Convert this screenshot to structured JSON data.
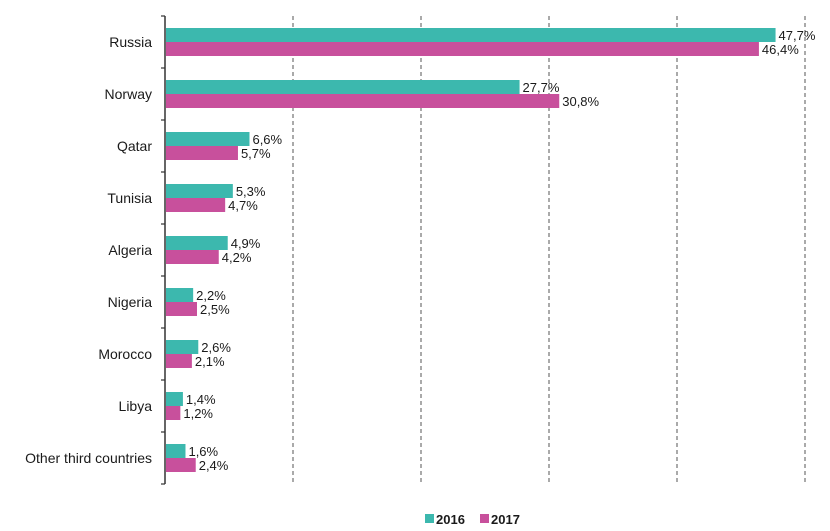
{
  "chart_data": {
    "type": "bar",
    "orientation": "horizontal",
    "categories": [
      "Russia",
      "Norway",
      "Qatar",
      "Tunisia",
      "Algeria",
      "Nigeria",
      "Morocco",
      "Libya",
      "Other third countries"
    ],
    "series": [
      {
        "name": "2016",
        "color": "#3cb8ae",
        "values": [
          47.7,
          27.7,
          6.6,
          5.3,
          4.9,
          2.2,
          2.6,
          1.4,
          1.6
        ],
        "labels": [
          "47,7%",
          "27,7%",
          "6,6%",
          "5,3%",
          "4,9%",
          "2,2%",
          "2,6%",
          "1,4%",
          "1,6%"
        ]
      },
      {
        "name": "2017",
        "color": "#c8509c",
        "values": [
          46.4,
          30.8,
          5.7,
          4.7,
          4.2,
          2.5,
          2.1,
          1.2,
          2.4
        ],
        "labels": [
          "46,4%",
          "30,8%",
          "5,7%",
          "4,7%",
          "4,2%",
          "2,5%",
          "2,1%",
          "1,2%",
          "2,4%"
        ]
      }
    ],
    "xlim": [
      0,
      50
    ],
    "x_grid_step": 10,
    "grid": "vertical dashed",
    "legend_position": "bottom-center",
    "title": "",
    "xlabel": "",
    "ylabel": ""
  }
}
